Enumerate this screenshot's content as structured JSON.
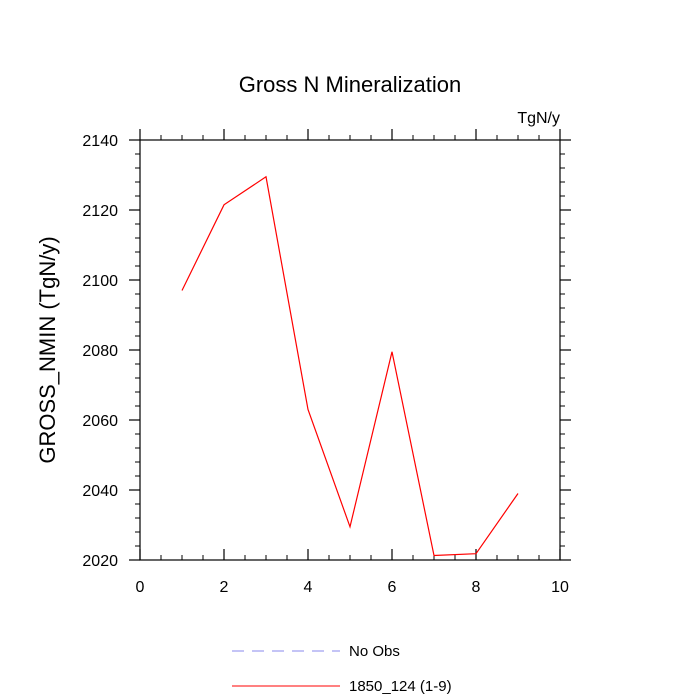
{
  "chart_data": {
    "type": "line",
    "title": "Gross N Mineralization",
    "units": "TgN/y",
    "xlabel": "",
    "ylabel": "GROSS_NMIN  (TgN/y)",
    "xlim": [
      0,
      10
    ],
    "ylim": [
      2020,
      2140
    ],
    "xticks": [
      0,
      2,
      4,
      6,
      8,
      10
    ],
    "yticks": [
      2020,
      2040,
      2060,
      2080,
      2100,
      2120,
      2140
    ],
    "series": [
      {
        "name": "1850_124 (1-9)",
        "color": "#ff0000",
        "dash": "solid",
        "x": [
          1,
          2,
          3,
          4,
          5,
          6,
          7,
          8,
          9
        ],
        "values": [
          2097,
          2121.5,
          2129.5,
          2063,
          2029.5,
          2079.5,
          2021.3,
          2021.8,
          2039
        ]
      }
    ],
    "legend": [
      {
        "label": "No Obs",
        "color": "#8888ee",
        "dash": "dashed"
      },
      {
        "label": "1850_124 (1-9)",
        "color": "#ff0000",
        "dash": "solid"
      }
    ]
  }
}
